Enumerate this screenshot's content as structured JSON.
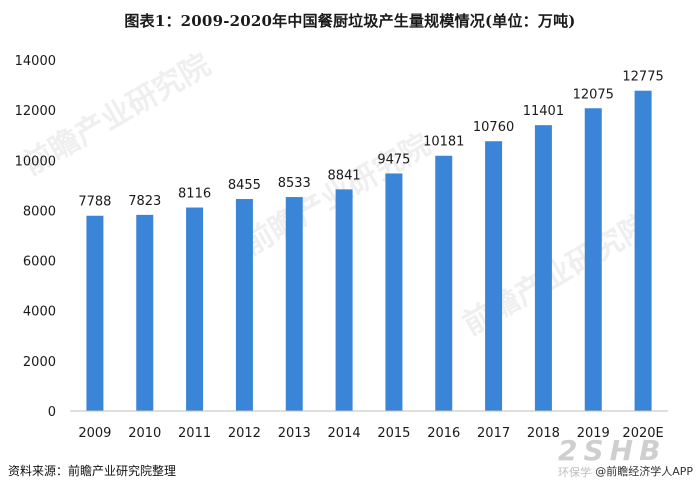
{
  "title": "图表1：2009-2020年中国餐厨垃圾产生量规模情况(单位：万吨)",
  "source": "资料来源：前瞻产业研究院整理",
  "watermark_text": "前瞻产业研究院",
  "stamp_text": "2SHB",
  "stamp_sub": "环保学社·com",
  "app_badge": "@前瞻经济学人APP",
  "colors": {
    "bar": "#3a85d8",
    "axis": "#bfbfbf",
    "text": "#1a1a1a"
  },
  "chart_data": {
    "type": "bar",
    "title": "图表1：2009-2020年中国餐厨垃圾产生量规模情况(单位：万吨)",
    "categories": [
      "2009",
      "2010",
      "2011",
      "2012",
      "2013",
      "2014",
      "2015",
      "2016",
      "2017",
      "2018",
      "2019",
      "2020E"
    ],
    "values": [
      7788,
      7823,
      8116,
      8455,
      8533,
      8841,
      9475,
      10181,
      10760,
      11401,
      12075,
      12775
    ],
    "ylim": [
      0,
      14000
    ],
    "yticks": [
      0,
      2000,
      4000,
      6000,
      8000,
      10000,
      12000,
      14000
    ],
    "grid": false,
    "data_labels": true
  }
}
